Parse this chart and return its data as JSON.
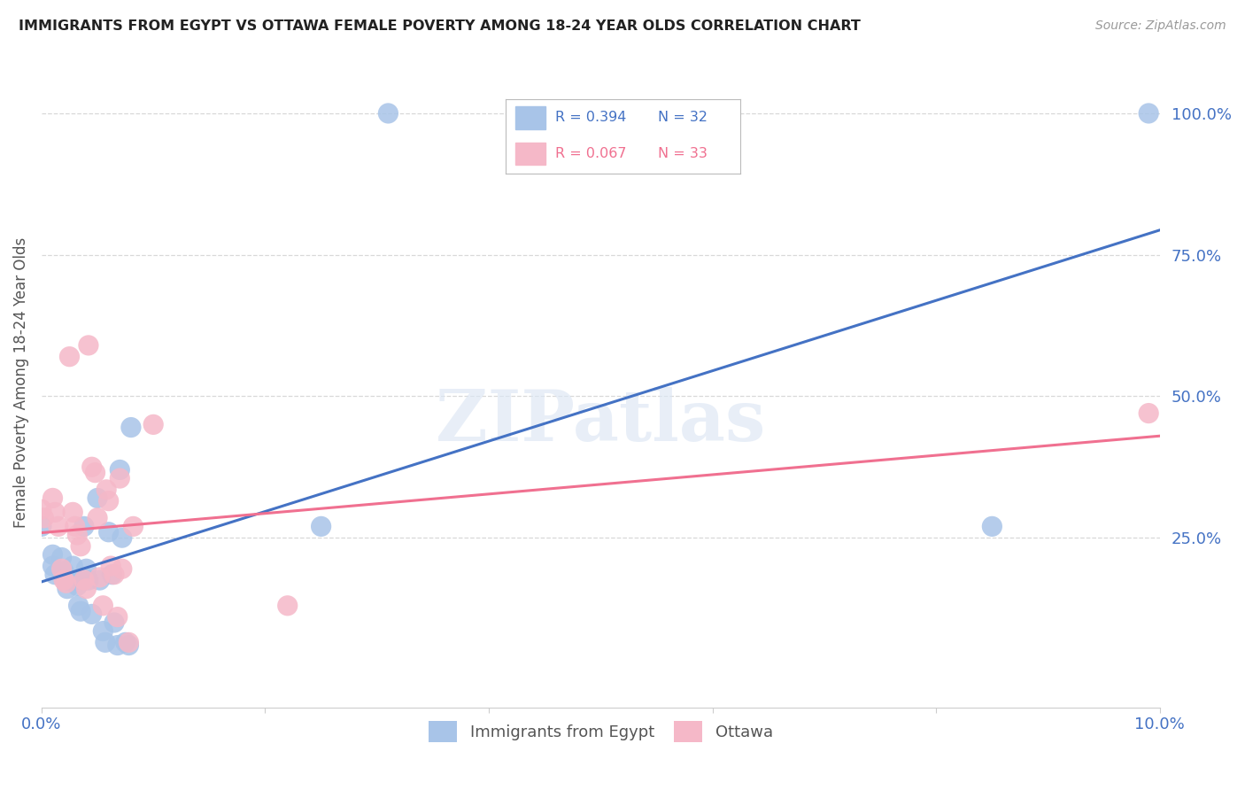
{
  "title": "IMMIGRANTS FROM EGYPT VS OTTAWA FEMALE POVERTY AMONG 18-24 YEAR OLDS CORRELATION CHART",
  "source": "Source: ZipAtlas.com",
  "ylabel": "Female Poverty Among 18-24 Year Olds",
  "legend_label_blue": "Immigrants from Egypt",
  "legend_label_pink": "Ottawa",
  "blue_color": "#a8c4e8",
  "pink_color": "#f5b8c8",
  "blue_line_color": "#4472c4",
  "pink_line_color": "#f07090",
  "blue_text_color": "#4472c4",
  "pink_text_color": "#f07090",
  "right_tick_color": "#4472c4",
  "bottom_tick_color": "#4472c4",
  "blue_scatter": [
    [
      0.0,
      27.0
    ],
    [
      0.1,
      22.0
    ],
    [
      0.1,
      20.0
    ],
    [
      0.12,
      18.5
    ],
    [
      0.18,
      21.5
    ],
    [
      0.2,
      19.0
    ],
    [
      0.22,
      17.5
    ],
    [
      0.23,
      16.0
    ],
    [
      0.28,
      20.0
    ],
    [
      0.3,
      17.5
    ],
    [
      0.32,
      16.5
    ],
    [
      0.33,
      13.0
    ],
    [
      0.35,
      12.0
    ],
    [
      0.38,
      27.0
    ],
    [
      0.4,
      19.5
    ],
    [
      0.42,
      17.5
    ],
    [
      0.45,
      11.5
    ],
    [
      0.5,
      32.0
    ],
    [
      0.52,
      17.5
    ],
    [
      0.55,
      8.5
    ],
    [
      0.57,
      6.5
    ],
    [
      0.6,
      26.0
    ],
    [
      0.63,
      18.5
    ],
    [
      0.65,
      10.0
    ],
    [
      0.68,
      6.0
    ],
    [
      0.7,
      37.0
    ],
    [
      0.72,
      25.0
    ],
    [
      0.75,
      6.5
    ],
    [
      0.78,
      6.0
    ],
    [
      0.8,
      44.5
    ],
    [
      2.5,
      27.0
    ],
    [
      3.1,
      100.0
    ],
    [
      8.5,
      27.0
    ],
    [
      9.9,
      100.0
    ]
  ],
  "pink_scatter": [
    [
      0.0,
      30.0
    ],
    [
      0.02,
      28.5
    ],
    [
      0.1,
      32.0
    ],
    [
      0.12,
      29.5
    ],
    [
      0.15,
      27.0
    ],
    [
      0.18,
      19.5
    ],
    [
      0.2,
      17.5
    ],
    [
      0.22,
      17.0
    ],
    [
      0.25,
      57.0
    ],
    [
      0.28,
      29.5
    ],
    [
      0.3,
      27.0
    ],
    [
      0.32,
      25.5
    ],
    [
      0.35,
      23.5
    ],
    [
      0.38,
      17.5
    ],
    [
      0.4,
      16.0
    ],
    [
      0.42,
      59.0
    ],
    [
      0.45,
      37.5
    ],
    [
      0.48,
      36.5
    ],
    [
      0.5,
      28.5
    ],
    [
      0.52,
      18.0
    ],
    [
      0.55,
      13.0
    ],
    [
      0.58,
      33.5
    ],
    [
      0.6,
      31.5
    ],
    [
      0.62,
      20.0
    ],
    [
      0.65,
      18.5
    ],
    [
      0.68,
      11.0
    ],
    [
      0.7,
      35.5
    ],
    [
      0.72,
      19.5
    ],
    [
      0.78,
      6.5
    ],
    [
      0.82,
      27.0
    ],
    [
      1.0,
      45.0
    ],
    [
      2.2,
      13.0
    ],
    [
      9.9,
      47.0
    ]
  ],
  "xlim": [
    0.0,
    10.0
  ],
  "ylim": [
    -5.0,
    110.0
  ],
  "yticks": [
    25.0,
    50.0,
    75.0,
    100.0
  ],
  "xtick_positions": [
    0.0,
    10.0
  ],
  "xtick_labels": [
    "0.0%",
    "10.0%"
  ],
  "ytick_labels": [
    "25.0%",
    "50.0%",
    "75.0%",
    "100.0%"
  ],
  "watermark_text": "ZIPatlas",
  "background_color": "#ffffff",
  "grid_color": "#d8d8d8",
  "spine_color": "#cccccc"
}
